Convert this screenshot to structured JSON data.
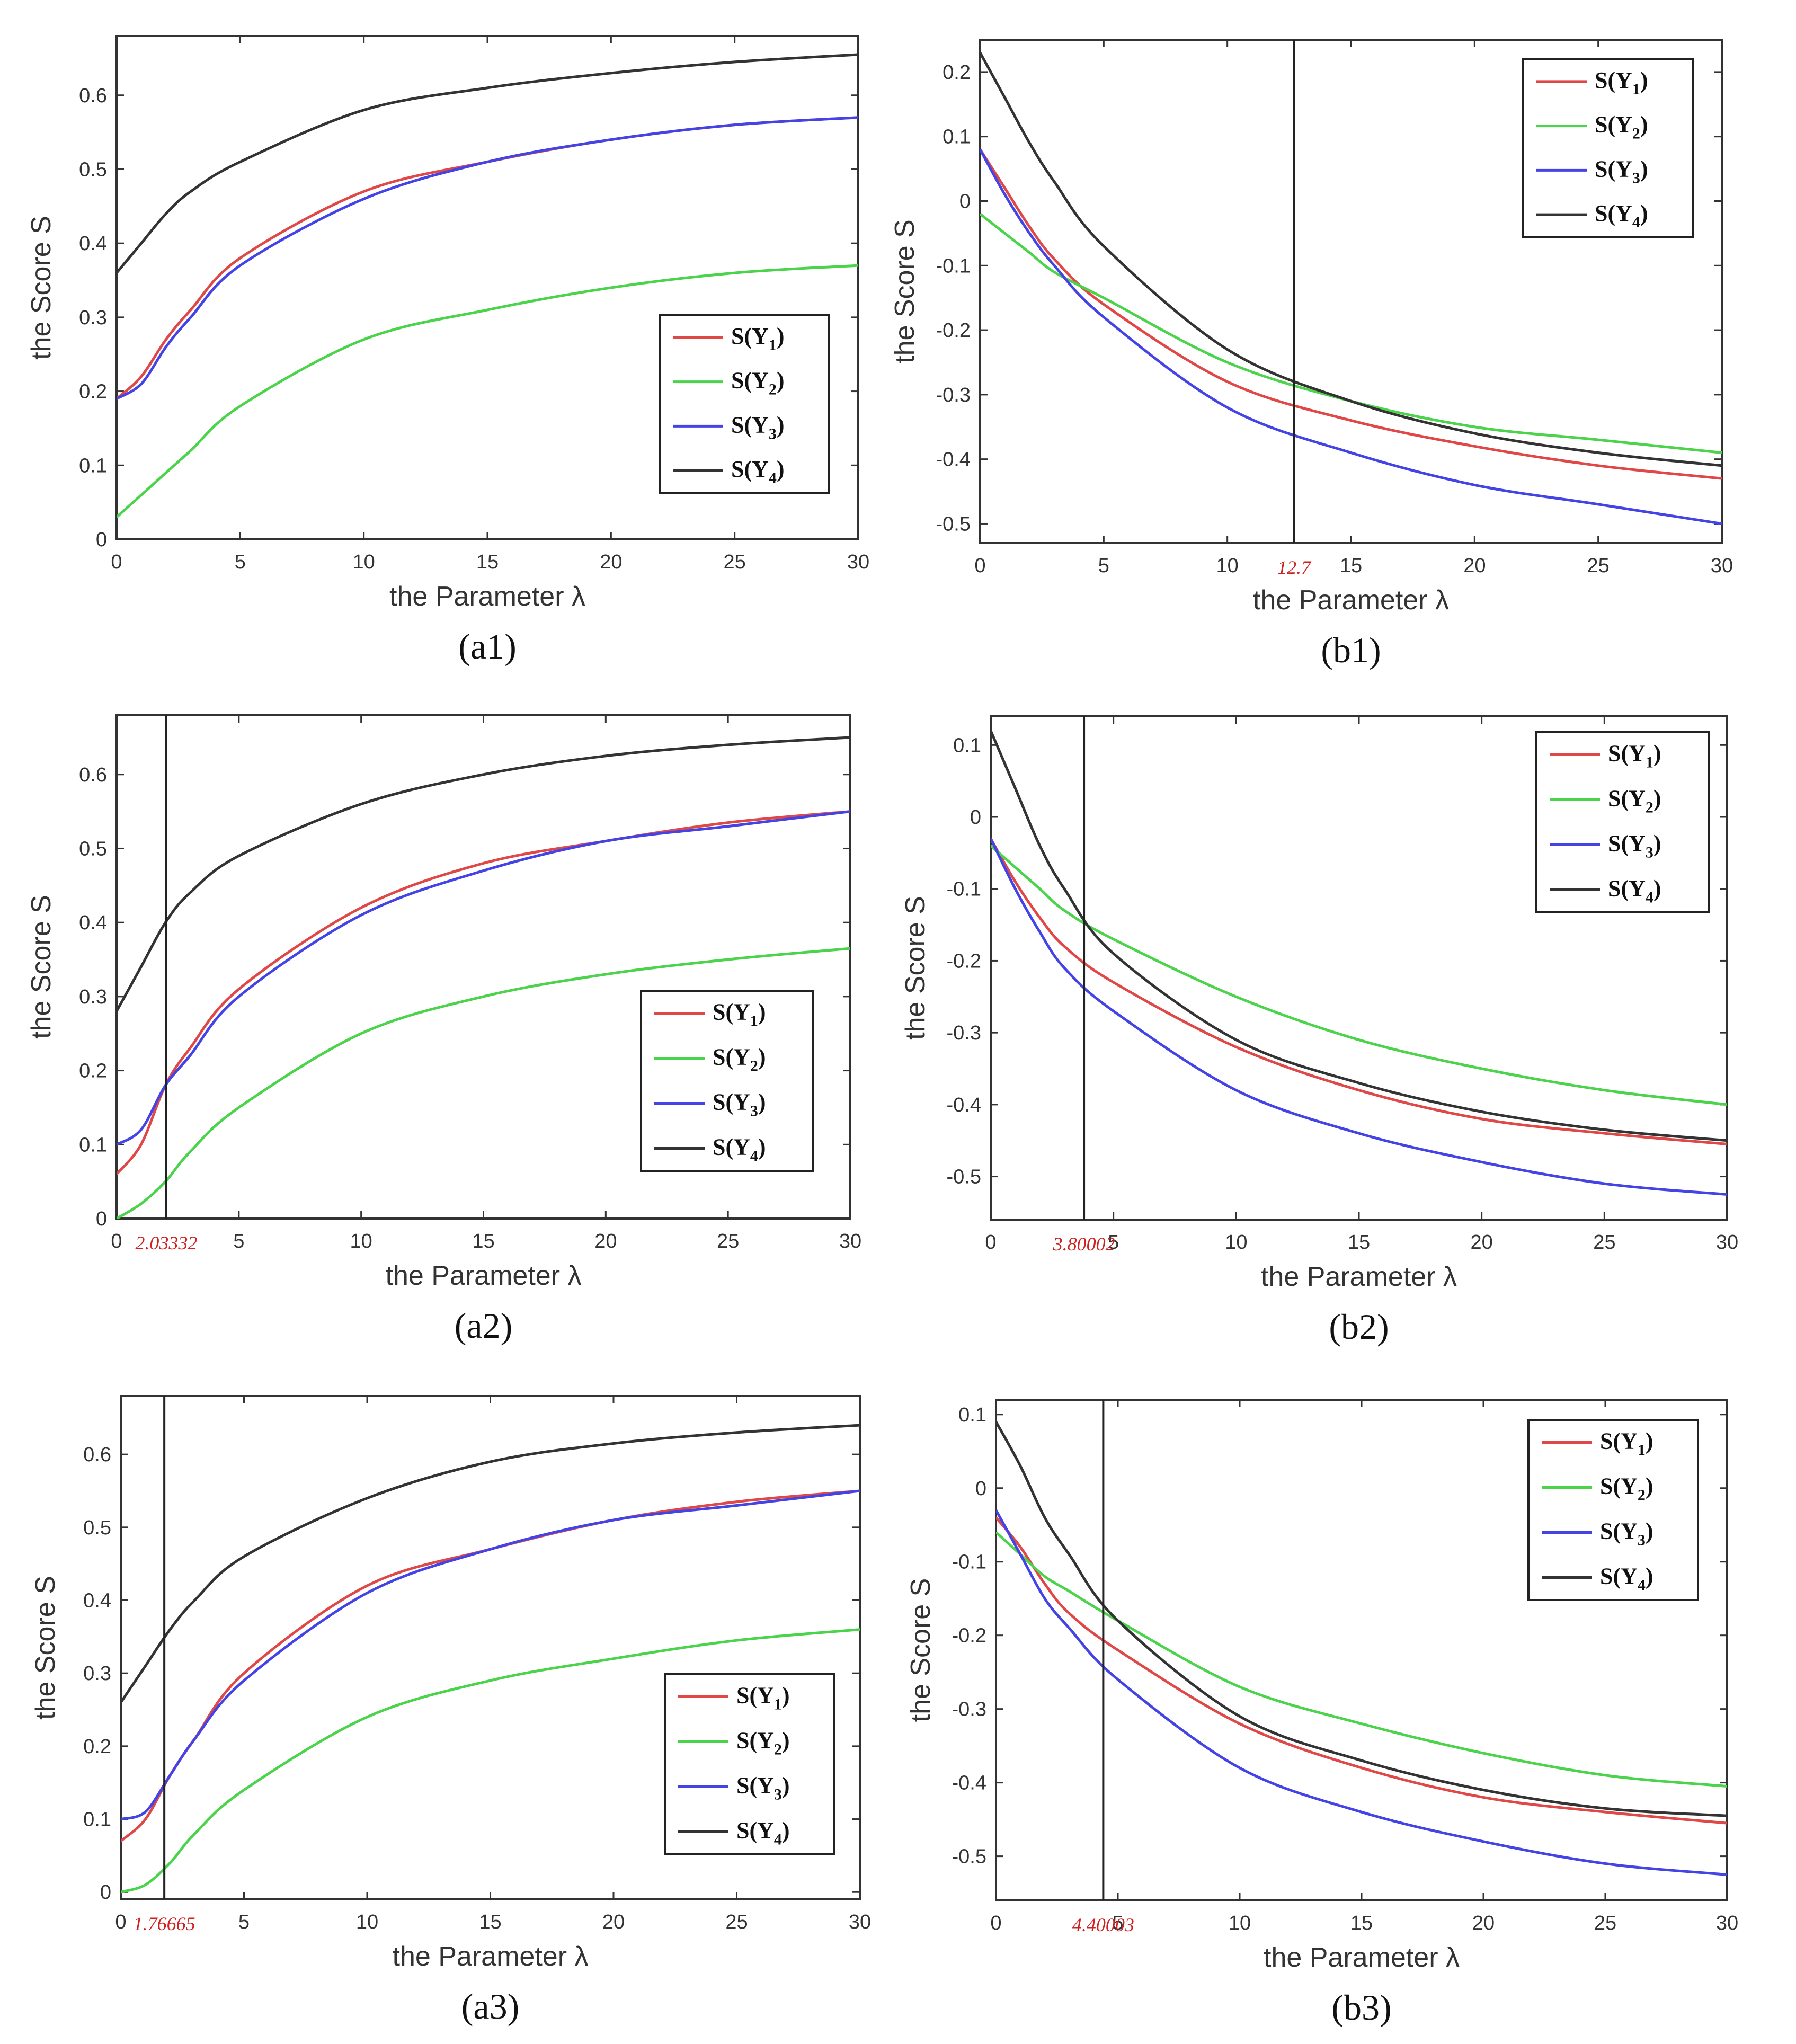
{
  "figure": {
    "colors": {
      "S(Y1)": "#e04848",
      "S(Y2)": "#4cd34c",
      "S(Y3)": "#4444e6",
      "S(Y4)": "#333333"
    }
  },
  "chart_data": [
    {
      "type": "line",
      "panel_label": "(a1)",
      "xlabel": "the Parameter λ",
      "ylabel": "the Score S",
      "xlim": [
        0,
        30
      ],
      "ylim": [
        0,
        0.68
      ],
      "xticks": [
        "0",
        "5",
        "10",
        "15",
        "20",
        "25",
        "30"
      ],
      "yticks": [
        "0",
        "0.1",
        "0.2",
        "0.3",
        "0.4",
        "0.5",
        "0.6"
      ],
      "x": [
        0,
        1,
        2,
        3,
        5,
        10,
        15,
        20,
        25,
        30
      ],
      "series": [
        {
          "name": "S(Y1)",
          "values": [
            0.19,
            0.22,
            0.27,
            0.31,
            0.38,
            0.47,
            0.51,
            0.54,
            0.56,
            0.57
          ]
        },
        {
          "name": "S(Y2)",
          "values": [
            0.03,
            0.06,
            0.09,
            0.12,
            0.18,
            0.27,
            0.31,
            0.34,
            0.36,
            0.37
          ]
        },
        {
          "name": "S(Y3)",
          "values": [
            0.19,
            0.21,
            0.26,
            0.3,
            0.37,
            0.46,
            0.51,
            0.54,
            0.56,
            0.57
          ]
        },
        {
          "name": "S(Y4)",
          "values": [
            0.36,
            0.4,
            0.44,
            0.47,
            0.51,
            0.58,
            0.61,
            0.63,
            0.645,
            0.655
          ]
        }
      ],
      "legend": {
        "position": "lower-right",
        "entries": [
          "S(Y1)",
          "S(Y2)",
          "S(Y3)",
          "S(Y4)"
        ]
      }
    },
    {
      "type": "line",
      "panel_label": "(b1)",
      "xlabel": "the Parameter λ",
      "ylabel": "the Score S",
      "xlim": [
        0,
        30
      ],
      "ylim": [
        -0.53,
        0.25
      ],
      "xticks": [
        "0",
        "5",
        "10",
        "15",
        "20",
        "25",
        "30"
      ],
      "yticks": [
        "-0.5",
        "-0.4",
        "-0.3",
        "-0.2",
        "-0.1",
        "0",
        "0.1",
        "0.2"
      ],
      "marker": {
        "x": 12.7,
        "label": "12.7"
      },
      "x": [
        0,
        1,
        2,
        3,
        5,
        10,
        15,
        20,
        25,
        30
      ],
      "series": [
        {
          "name": "S(Y1)",
          "values": [
            0.08,
            0.02,
            -0.04,
            -0.09,
            -0.16,
            -0.28,
            -0.34,
            -0.38,
            -0.41,
            -0.43
          ]
        },
        {
          "name": "S(Y2)",
          "values": [
            -0.02,
            -0.05,
            -0.08,
            -0.11,
            -0.15,
            -0.25,
            -0.31,
            -0.35,
            -0.37,
            -0.39
          ]
        },
        {
          "name": "S(Y3)",
          "values": [
            0.08,
            0.01,
            -0.05,
            -0.1,
            -0.18,
            -0.32,
            -0.39,
            -0.44,
            -0.47,
            -0.5
          ]
        },
        {
          "name": "S(Y4)",
          "values": [
            0.23,
            0.16,
            0.09,
            0.03,
            -0.07,
            -0.23,
            -0.31,
            -0.36,
            -0.39,
            -0.41
          ]
        }
      ],
      "legend": {
        "position": "upper-right",
        "entries": [
          "S(Y1)",
          "S(Y2)",
          "S(Y3)",
          "S(Y4)"
        ]
      }
    },
    {
      "type": "line",
      "panel_label": "(a2)",
      "xlabel": "the Parameter λ",
      "ylabel": "the Score S",
      "xlim": [
        0,
        30
      ],
      "ylim": [
        0,
        0.68
      ],
      "xticks": [
        "0",
        "5",
        "10",
        "15",
        "20",
        "25",
        "30"
      ],
      "yticks": [
        "0",
        "0.1",
        "0.2",
        "0.3",
        "0.4",
        "0.5",
        "0.6"
      ],
      "marker": {
        "x": 2.03332,
        "label": "2.03332"
      },
      "x": [
        0,
        1,
        2,
        3,
        5,
        10,
        15,
        20,
        25,
        30
      ],
      "series": [
        {
          "name": "S(Y1)",
          "values": [
            0.06,
            0.1,
            0.18,
            0.23,
            0.31,
            0.42,
            0.48,
            0.51,
            0.535,
            0.55
          ]
        },
        {
          "name": "S(Y2)",
          "values": [
            0.0,
            0.02,
            0.05,
            0.09,
            0.15,
            0.25,
            0.3,
            0.33,
            0.35,
            0.365
          ]
        },
        {
          "name": "S(Y3)",
          "values": [
            0.1,
            0.12,
            0.18,
            0.22,
            0.3,
            0.41,
            0.47,
            0.51,
            0.53,
            0.55
          ]
        },
        {
          "name": "S(Y4)",
          "values": [
            0.28,
            0.34,
            0.4,
            0.44,
            0.49,
            0.56,
            0.6,
            0.625,
            0.64,
            0.65
          ]
        }
      ],
      "legend": {
        "position": "lower-right",
        "entries": [
          "S(Y1)",
          "S(Y2)",
          "S(Y3)",
          "S(Y4)"
        ]
      }
    },
    {
      "type": "line",
      "panel_label": "(b2)",
      "xlabel": "the Parameter λ",
      "ylabel": "the Score S",
      "xlim": [
        0,
        30
      ],
      "ylim": [
        -0.56,
        0.14
      ],
      "xticks": [
        "0",
        "5",
        "10",
        "15",
        "20",
        "25",
        "30"
      ],
      "yticks": [
        "-0.5",
        "-0.4",
        "-0.3",
        "-0.2",
        "-0.1",
        "0",
        "0.1"
      ],
      "marker": {
        "x": 3.80002,
        "label": "3.80002"
      },
      "x": [
        0,
        1,
        2,
        3,
        5,
        10,
        15,
        20,
        25,
        30
      ],
      "series": [
        {
          "name": "S(Y1)",
          "values": [
            -0.03,
            -0.09,
            -0.14,
            -0.18,
            -0.23,
            -0.32,
            -0.38,
            -0.42,
            -0.44,
            -0.455
          ]
        },
        {
          "name": "S(Y2)",
          "values": [
            -0.04,
            -0.07,
            -0.1,
            -0.13,
            -0.17,
            -0.25,
            -0.31,
            -0.35,
            -0.38,
            -0.4
          ]
        },
        {
          "name": "S(Y3)",
          "values": [
            -0.03,
            -0.1,
            -0.16,
            -0.21,
            -0.27,
            -0.38,
            -0.44,
            -0.48,
            -0.51,
            -0.525
          ]
        },
        {
          "name": "S(Y4)",
          "values": [
            0.12,
            0.04,
            -0.04,
            -0.1,
            -0.19,
            -0.31,
            -0.37,
            -0.41,
            -0.435,
            -0.45
          ]
        }
      ],
      "legend": {
        "position": "upper-right",
        "entries": [
          "S(Y1)",
          "S(Y2)",
          "S(Y3)",
          "S(Y4)"
        ]
      }
    },
    {
      "type": "line",
      "panel_label": "(a3)",
      "xlabel": "the Parameter λ",
      "ylabel": "the Score S",
      "xlim": [
        0,
        30
      ],
      "ylim": [
        -0.01,
        0.68
      ],
      "xticks": [
        "0",
        "5",
        "10",
        "15",
        "20",
        "25",
        "30"
      ],
      "yticks": [
        "0",
        "0.1",
        "0.2",
        "0.3",
        "0.4",
        "0.5",
        "0.6"
      ],
      "marker": {
        "x": 1.76665,
        "label": "1.76665"
      },
      "x": [
        0,
        1,
        2,
        3,
        5,
        10,
        15,
        20,
        25,
        30
      ],
      "series": [
        {
          "name": "S(Y1)",
          "values": [
            0.07,
            0.1,
            0.16,
            0.21,
            0.3,
            0.42,
            0.47,
            0.51,
            0.535,
            0.55
          ]
        },
        {
          "name": "S(Y2)",
          "values": [
            0.0,
            0.01,
            0.04,
            0.08,
            0.14,
            0.24,
            0.29,
            0.32,
            0.345,
            0.36
          ]
        },
        {
          "name": "S(Y3)",
          "values": [
            0.1,
            0.11,
            0.16,
            0.21,
            0.29,
            0.41,
            0.47,
            0.51,
            0.53,
            0.55
          ]
        },
        {
          "name": "S(Y4)",
          "values": [
            0.26,
            0.31,
            0.36,
            0.4,
            0.46,
            0.54,
            0.59,
            0.615,
            0.63,
            0.64
          ]
        }
      ],
      "legend": {
        "position": "lower-right",
        "entries": [
          "S(Y1)",
          "S(Y2)",
          "S(Y3)",
          "S(Y4)"
        ]
      }
    },
    {
      "type": "line",
      "panel_label": "(b3)",
      "xlabel": "the Parameter λ",
      "ylabel": "the Score S",
      "xlim": [
        0,
        30
      ],
      "ylim": [
        -0.56,
        0.12
      ],
      "xticks": [
        "0",
        "5",
        "10",
        "15",
        "20",
        "25",
        "30"
      ],
      "yticks": [
        "-0.5",
        "-0.4",
        "-0.3",
        "-0.2",
        "-0.1",
        "0",
        "0.1"
      ],
      "marker": {
        "x": 4.40003,
        "label": "4.40003"
      },
      "x": [
        0,
        1,
        2,
        3,
        5,
        10,
        15,
        20,
        25,
        30
      ],
      "series": [
        {
          "name": "S(Y1)",
          "values": [
            -0.04,
            -0.08,
            -0.13,
            -0.17,
            -0.22,
            -0.32,
            -0.38,
            -0.42,
            -0.44,
            -0.455
          ]
        },
        {
          "name": "S(Y2)",
          "values": [
            -0.06,
            -0.09,
            -0.12,
            -0.14,
            -0.18,
            -0.27,
            -0.32,
            -0.36,
            -0.39,
            -0.405
          ]
        },
        {
          "name": "S(Y3)",
          "values": [
            -0.03,
            -0.09,
            -0.15,
            -0.19,
            -0.26,
            -0.38,
            -0.44,
            -0.48,
            -0.51,
            -0.525
          ]
        },
        {
          "name": "S(Y4)",
          "values": [
            0.09,
            0.03,
            -0.04,
            -0.09,
            -0.18,
            -0.31,
            -0.37,
            -0.41,
            -0.435,
            -0.445
          ]
        }
      ],
      "legend": {
        "position": "upper-right",
        "entries": [
          "S(Y1)",
          "S(Y2)",
          "S(Y3)",
          "S(Y4)"
        ]
      }
    }
  ]
}
